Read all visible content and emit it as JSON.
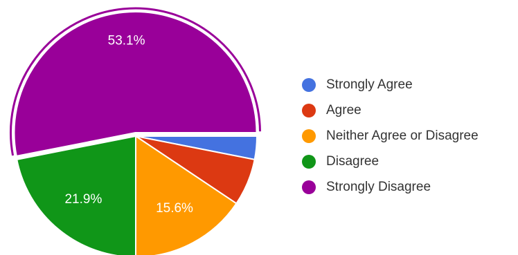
{
  "chart_data": {
    "type": "pie",
    "categories": [
      "Strongly Agree",
      "Agree",
      "Neither Agree or Disagree",
      "Disagree",
      "Strongly Disagree"
    ],
    "values": [
      3.1,
      6.3,
      15.6,
      21.9,
      53.1
    ],
    "slice_labels": [
      "",
      "",
      "15.6%",
      "21.9%",
      "53.1%"
    ],
    "colors": [
      "#4472e0",
      "#dc3912",
      "#ff9900",
      "#109618",
      "#990099"
    ],
    "exploded": "Strongly Disagree",
    "legend": {
      "position": "right",
      "items": [
        "Strongly Agree",
        "Agree",
        "Neither Agree or Disagree",
        "Disagree",
        "Strongly Disagree"
      ]
    }
  }
}
